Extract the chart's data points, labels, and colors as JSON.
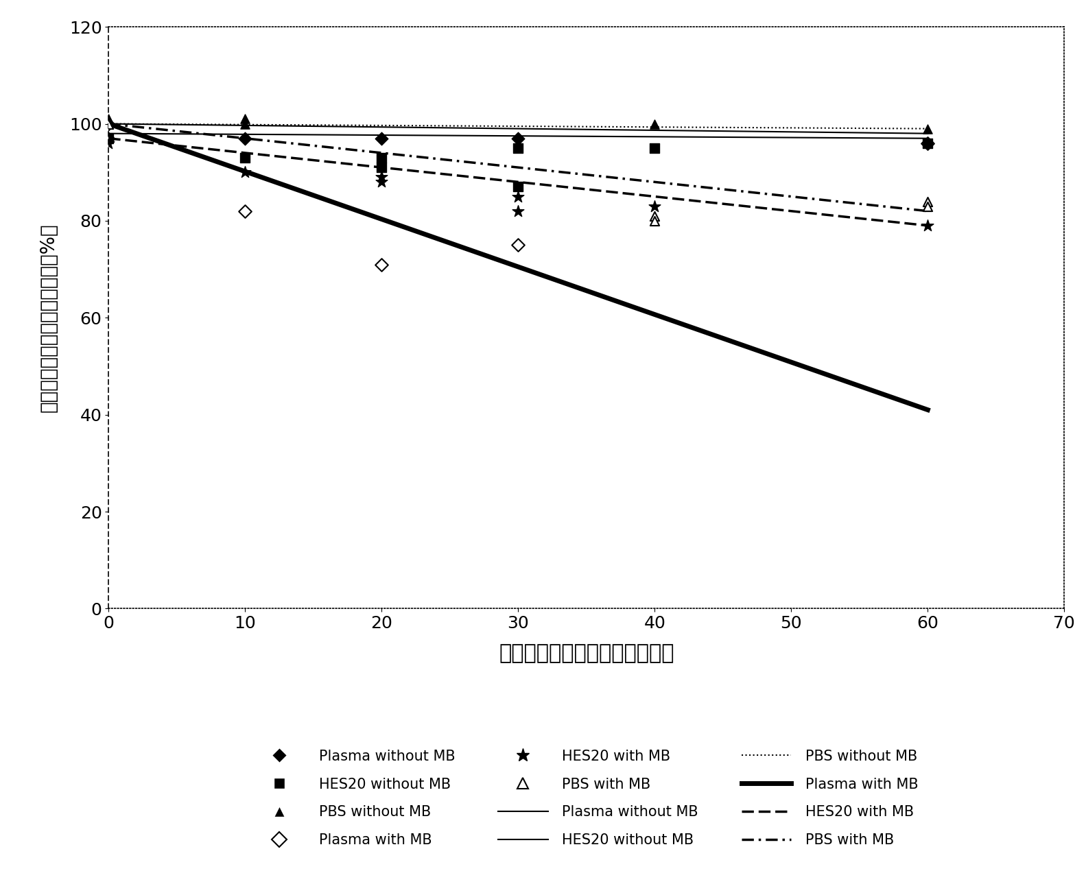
{
  "plasma_without_mb_scatter_x": [
    0,
    0,
    10,
    20,
    30,
    60
  ],
  "plasma_without_mb_scatter_y": [
    100,
    97,
    97,
    97,
    97,
    96
  ],
  "plasma_with_mb_scatter_x": [
    10,
    20,
    30,
    60
  ],
  "plasma_with_mb_scatter_y": [
    82,
    71,
    75,
    96
  ],
  "hes20_without_mb_scatter_x": [
    0,
    10,
    20,
    20,
    30,
    30,
    40,
    60
  ],
  "hes20_without_mb_scatter_y": [
    97,
    93,
    91,
    93,
    95,
    87,
    95,
    96
  ],
  "hes20_with_mb_scatter_x": [
    0,
    10,
    20,
    20,
    30,
    30,
    40,
    60
  ],
  "hes20_with_mb_scatter_y": [
    96,
    90,
    89,
    88,
    85,
    82,
    83,
    79
  ],
  "pbs_without_mb_scatter_x": [
    0,
    0,
    10,
    10,
    40,
    60
  ],
  "pbs_without_mb_scatter_y": [
    100,
    101,
    101,
    100,
    100,
    99
  ],
  "pbs_with_mb_scatter_x": [
    0,
    40,
    40,
    60,
    60
  ],
  "pbs_with_mb_scatter_y": [
    100,
    81,
    80,
    84,
    83
  ],
  "plasma_without_mb_line_x": [
    0,
    60
  ],
  "plasma_without_mb_line_y": [
    100,
    98
  ],
  "plasma_with_mb_line_x": [
    0,
    60
  ],
  "plasma_with_mb_line_y": [
    100,
    41
  ],
  "hes20_without_mb_line_x": [
    0,
    60
  ],
  "hes20_without_mb_line_y": [
    98,
    97
  ],
  "hes20_with_mb_line_x": [
    0,
    60
  ],
  "hes20_with_mb_line_y": [
    97,
    79
  ],
  "pbs_without_mb_line_x": [
    0,
    60
  ],
  "pbs_without_mb_line_y": [
    100,
    99
  ],
  "pbs_with_mb_line_x": [
    0,
    60
  ],
  "pbs_with_mb_line_y": [
    100,
    82
  ],
  "xlabel": "亚甲蓝光化学灬活时间（分钟）",
  "ylabel": "灬活前后病毒载量对数百分比（%）",
  "xlim": [
    0,
    70
  ],
  "ylim": [
    0,
    120
  ],
  "xticks": [
    0,
    10,
    20,
    30,
    40,
    50,
    60,
    70
  ],
  "yticks": [
    0,
    20,
    40,
    60,
    80,
    100,
    120
  ],
  "background_color": "#ffffff",
  "legend_row1": [
    "Plasma without MB",
    "HES20 without MB",
    "PBS without MB"
  ],
  "legend_row2": [
    "Plasma with MB",
    "HES20 with MB",
    "PBS with MB"
  ],
  "legend_row3": [
    "Plasma without MB",
    "HES20 without MB",
    "PBS without MB"
  ],
  "legend_row4": [
    "Plasma with MB",
    "HES20 with MB",
    "PBS with MB"
  ]
}
